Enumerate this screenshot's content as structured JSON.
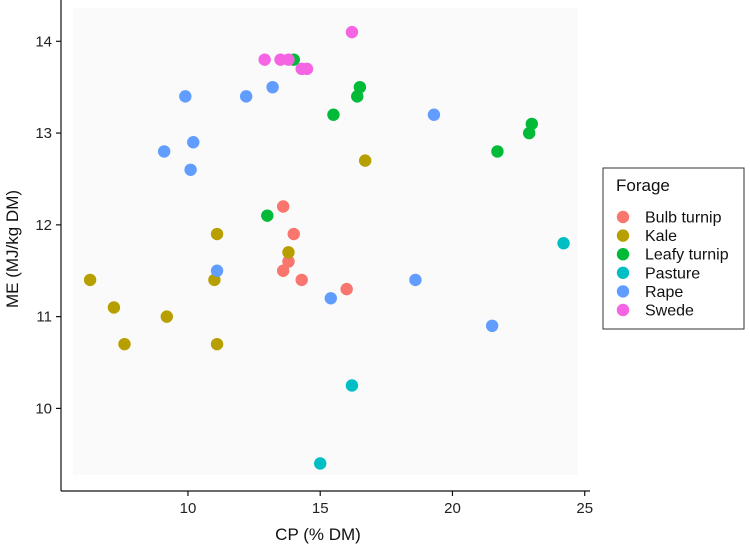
{
  "chart_data": {
    "type": "scatter",
    "xlabel": "CP (% DM)",
    "ylabel": "ME (MJ/kg DM)",
    "xlim": [
      5.2,
      25.2
    ],
    "ylim": [
      9.1,
      14.45
    ],
    "xticks": [
      "10",
      "15",
      "20",
      "25"
    ],
    "yticks": [
      "10",
      "11",
      "12",
      "13",
      "14"
    ],
    "legend_title": "Forage",
    "legend_position": "right",
    "grid": false,
    "series": [
      {
        "name": "Bulb turnip",
        "color": "#f8766d",
        "points": [
          [
            13.6,
            12.2
          ],
          [
            14.0,
            11.9
          ],
          [
            13.8,
            11.6
          ],
          [
            13.6,
            11.5
          ],
          [
            14.3,
            11.4
          ],
          [
            16.0,
            11.3
          ]
        ]
      },
      {
        "name": "Kale",
        "color": "#b79f00",
        "points": [
          [
            6.3,
            11.4
          ],
          [
            7.2,
            11.1
          ],
          [
            7.6,
            10.7
          ],
          [
            9.2,
            11.0
          ],
          [
            11.1,
            11.9
          ],
          [
            11.0,
            11.4
          ],
          [
            11.1,
            10.7
          ],
          [
            13.8,
            11.7
          ],
          [
            16.7,
            12.7
          ]
        ]
      },
      {
        "name": "Leafy turnip",
        "color": "#00ba38",
        "points": [
          [
            14.0,
            13.8
          ],
          [
            16.5,
            13.5
          ],
          [
            16.4,
            13.4
          ],
          [
            15.5,
            13.2
          ],
          [
            21.7,
            12.8
          ],
          [
            22.9,
            13.0
          ],
          [
            23.0,
            13.1
          ],
          [
            13.0,
            12.1
          ]
        ]
      },
      {
        "name": "Pasture",
        "color": "#00bfc4",
        "points": [
          [
            24.2,
            11.8
          ],
          [
            16.2,
            10.25
          ],
          [
            15.0,
            9.4
          ]
        ]
      },
      {
        "name": "Rape",
        "color": "#619cff",
        "points": [
          [
            9.9,
            13.4
          ],
          [
            12.2,
            13.4
          ],
          [
            13.2,
            13.5
          ],
          [
            9.1,
            12.8
          ],
          [
            10.2,
            12.9
          ],
          [
            10.1,
            12.6
          ],
          [
            19.3,
            13.2
          ],
          [
            11.1,
            11.5
          ],
          [
            15.4,
            11.2
          ],
          [
            18.6,
            11.4
          ],
          [
            21.5,
            10.9
          ]
        ]
      },
      {
        "name": "Swede",
        "color": "#f564e3",
        "points": [
          [
            12.9,
            13.8
          ],
          [
            13.5,
            13.8
          ],
          [
            13.8,
            13.8
          ],
          [
            14.3,
            13.7
          ],
          [
            14.5,
            13.7
          ],
          [
            16.2,
            14.1
          ]
        ]
      }
    ]
  }
}
